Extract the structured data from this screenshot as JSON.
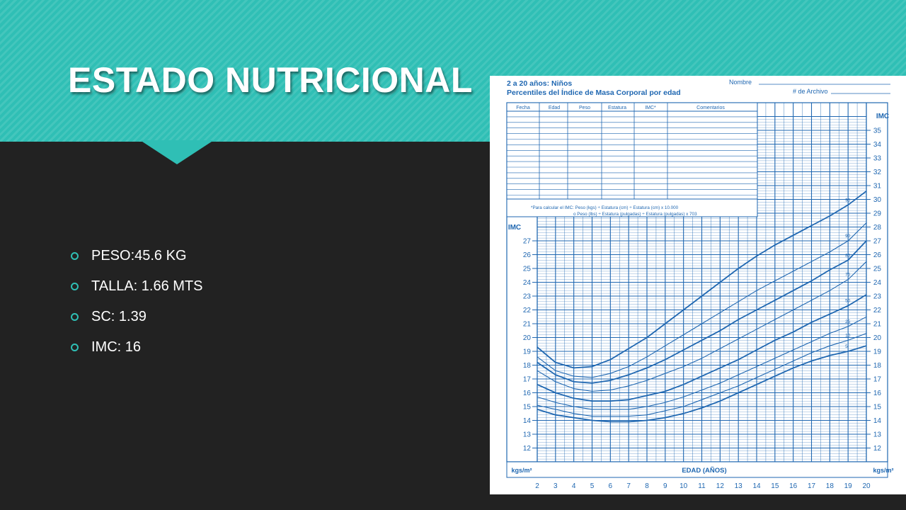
{
  "slide": {
    "title": "ESTADO NUTRICIONAL",
    "bullets": [
      {
        "label": "PESO:45.6 KG"
      },
      {
        "label": "TALLA: 1.66 MTS"
      },
      {
        "label": "SC: 1.39"
      },
      {
        "label": "IMC: 16"
      }
    ]
  },
  "colors": {
    "accent": "#2fbfb5",
    "background": "#222222",
    "chart_blue": "#1f67b1"
  },
  "chart_data": {
    "type": "line",
    "title": "2 a 20 años: Niños",
    "subtitle": "Percentiles del Índice de Masa Corporal por edad",
    "form_labels": {
      "nombre": "Nombre",
      "archivo": "# de Archivo"
    },
    "table_headers": [
      "Fecha",
      "Edad",
      "Peso",
      "Estatura",
      "IMC*",
      "Comentarios"
    ],
    "formula_1": "*Para calcular el IMC: Peso (kgs) ÷ Estatura (cm) ÷ Estatura (cm) x 10.000",
    "formula_2": "o Peso (lbs) ÷ Estatura (pulgadas) ÷ Estatura (pulgadas) x 703",
    "xlabel": "EDAD (AÑOS)",
    "ylabel": "IMC",
    "unit_label": "kgs/m²",
    "xlim": [
      2,
      20
    ],
    "ylim": [
      11,
      36
    ],
    "x_ticks": [
      2,
      3,
      4,
      5,
      6,
      7,
      8,
      9,
      10,
      11,
      12,
      13,
      14,
      15,
      16,
      17,
      18,
      19,
      20
    ],
    "y_ticks_left": [
      12,
      13,
      14,
      15,
      16,
      17,
      18,
      19,
      20,
      21,
      22,
      23,
      24,
      25,
      26,
      27
    ],
    "y_ticks_right": [
      12,
      13,
      14,
      15,
      16,
      17,
      18,
      19,
      20,
      21,
      22,
      23,
      24,
      25,
      26,
      27,
      28,
      29,
      30,
      31,
      32,
      33,
      34,
      35
    ],
    "x": [
      2,
      3,
      4,
      5,
      6,
      7,
      8,
      9,
      10,
      11,
      12,
      13,
      14,
      15,
      16,
      17,
      18,
      19,
      20
    ],
    "series": [
      {
        "name": "95",
        "values": [
          19.3,
          18.2,
          17.8,
          17.9,
          18.4,
          19.2,
          20.0,
          21.0,
          22.0,
          23.0,
          24.0,
          25.0,
          25.9,
          26.7,
          27.4,
          28.1,
          28.8,
          29.6,
          30.6
        ]
      },
      {
        "name": "90",
        "values": [
          18.6,
          17.6,
          17.2,
          17.1,
          17.4,
          17.9,
          18.6,
          19.4,
          20.2,
          21.0,
          21.8,
          22.6,
          23.4,
          24.1,
          24.8,
          25.5,
          26.2,
          27.0,
          28.3
        ]
      },
      {
        "name": "85",
        "values": [
          18.2,
          17.3,
          16.8,
          16.7,
          16.9,
          17.3,
          17.8,
          18.4,
          19.1,
          19.8,
          20.5,
          21.3,
          22.0,
          22.7,
          23.4,
          24.1,
          24.9,
          25.6,
          27.0
        ]
      },
      {
        "name": "75",
        "values": [
          17.6,
          16.8,
          16.3,
          16.1,
          16.2,
          16.5,
          16.9,
          17.4,
          17.9,
          18.5,
          19.2,
          19.9,
          20.6,
          21.3,
          22.0,
          22.7,
          23.4,
          24.2,
          25.5
        ]
      },
      {
        "name": "50",
        "values": [
          16.6,
          16.0,
          15.6,
          15.4,
          15.4,
          15.5,
          15.8,
          16.1,
          16.6,
          17.2,
          17.8,
          18.4,
          19.1,
          19.8,
          20.4,
          21.1,
          21.7,
          22.3,
          23.1
        ]
      },
      {
        "name": "25",
        "values": [
          15.7,
          15.3,
          15.0,
          14.8,
          14.8,
          14.8,
          15.0,
          15.3,
          15.7,
          16.2,
          16.7,
          17.3,
          17.9,
          18.5,
          19.1,
          19.7,
          20.3,
          20.8,
          21.5
        ]
      },
      {
        "name": "10",
        "values": [
          15.1,
          14.8,
          14.5,
          14.3,
          14.3,
          14.3,
          14.4,
          14.7,
          15.0,
          15.5,
          16.0,
          16.5,
          17.1,
          17.7,
          18.3,
          18.9,
          19.4,
          19.8,
          20.3
        ]
      },
      {
        "name": "5",
        "values": [
          14.8,
          14.4,
          14.2,
          14.0,
          13.9,
          13.9,
          14.0,
          14.2,
          14.5,
          14.9,
          15.4,
          16.0,
          16.6,
          17.2,
          17.8,
          18.3,
          18.7,
          19.0,
          19.4
        ]
      }
    ]
  }
}
